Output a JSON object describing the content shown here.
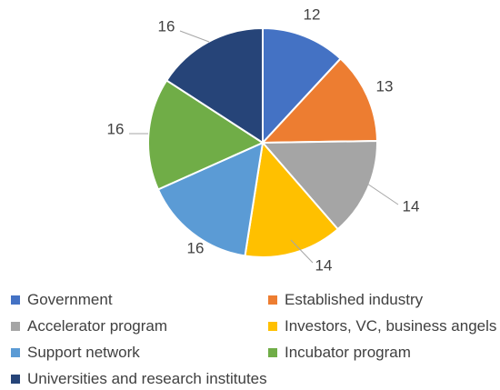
{
  "chart_data": {
    "type": "pie",
    "title": "",
    "start_angle_deg": 0,
    "direction": "clockwise",
    "slices": [
      {
        "label": "Government",
        "value": 12,
        "value_label": "12",
        "color": "#4472C4"
      },
      {
        "label": "Established industry",
        "value": 13,
        "value_label": "13",
        "color": "#ED7D31"
      },
      {
        "label": "Accelerator program",
        "value": 14,
        "value_label": "14",
        "color": "#A5A5A5"
      },
      {
        "label": "Investors, VC, business angels",
        "value": 14,
        "value_label": "14",
        "color": "#FFC000"
      },
      {
        "label": "Support network",
        "value": 16,
        "value_label": "16",
        "color": "#5B9BD5"
      },
      {
        "label": "Incubator program",
        "value": 16,
        "value_label": "16",
        "color": "#70AD47"
      },
      {
        "label": "Universities and research institutes",
        "value": 16,
        "value_label": "16",
        "color": "#264478"
      }
    ],
    "legend_position": "bottom",
    "label_color": "#404040",
    "leader_line_color": "#A6A6A6"
  }
}
